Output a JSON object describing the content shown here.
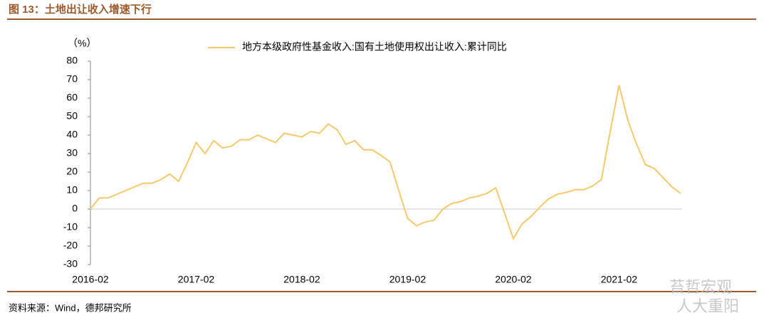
{
  "chart_data": {
    "type": "line",
    "title": "图 13：土地出让收入增速下行",
    "y_unit": "（%）",
    "source": "资料来源：Wind，德邦研究所",
    "watermarks": [
      "苔哲宏观",
      "人大重阳"
    ],
    "categories": [
      "2016-02",
      null,
      null,
      null,
      null,
      null,
      null,
      null,
      null,
      null,
      null,
      null,
      "2017-02",
      null,
      null,
      null,
      null,
      null,
      null,
      null,
      null,
      null,
      null,
      null,
      "2018-02",
      null,
      null,
      null,
      null,
      null,
      null,
      null,
      null,
      null,
      null,
      null,
      "2019-02",
      null,
      null,
      null,
      null,
      null,
      null,
      null,
      null,
      null,
      null,
      null,
      "2020-02",
      null,
      null,
      null,
      null,
      null,
      null,
      null,
      null,
      null,
      null,
      null,
      "2021-02",
      null,
      null,
      null,
      null,
      null,
      null,
      null
    ],
    "series": [
      {
        "name": "地方本级政府性基金收入:国有土地使用权出让收入:累计同比",
        "color": "#f7c96b",
        "values": [
          0,
          6,
          6,
          8,
          10,
          12,
          14,
          14,
          16,
          19,
          15,
          25,
          36,
          30,
          37,
          33,
          34,
          37.5,
          37.5,
          40,
          38,
          36,
          41,
          40,
          39,
          42,
          41,
          46,
          43,
          35,
          37,
          32,
          32,
          29,
          25.5,
          10,
          -5,
          -9,
          -7,
          -6,
          0,
          3,
          4,
          6,
          7,
          8.5,
          11.5,
          -2,
          -16,
          -8,
          -4,
          1,
          5.5,
          8,
          9,
          10.5,
          10.5,
          12.5,
          16,
          42,
          67,
          48,
          35,
          24,
          22,
          17,
          12,
          8.5
        ]
      }
    ],
    "ylim": [
      -30,
      80
    ],
    "yticks": [
      -30,
      -20,
      -10,
      0,
      10,
      20,
      30,
      40,
      50,
      60,
      70,
      80
    ]
  }
}
